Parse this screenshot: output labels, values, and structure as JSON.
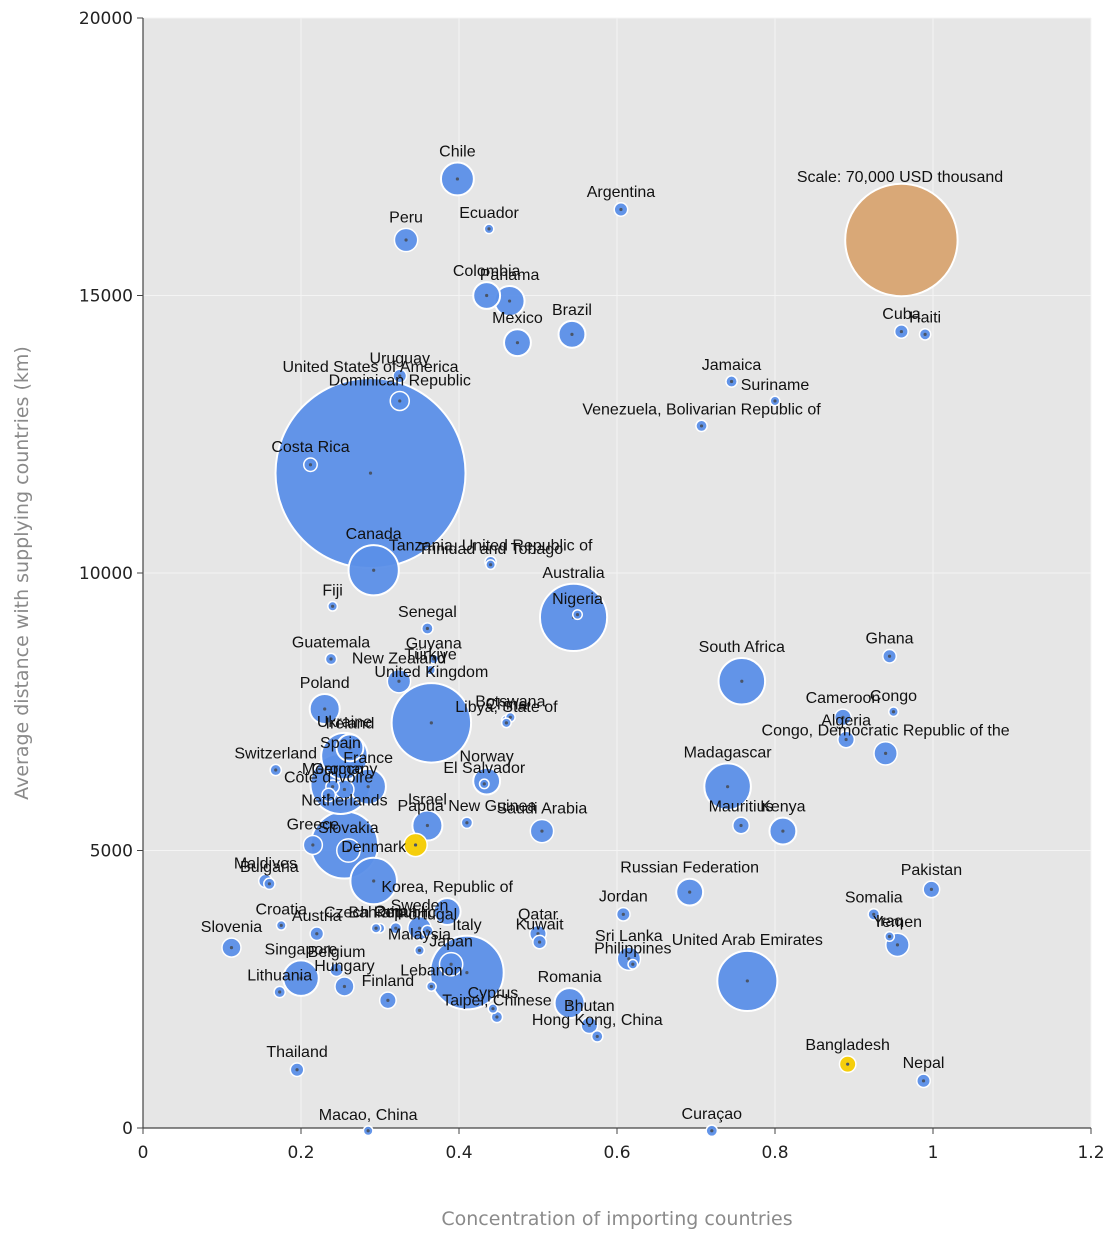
{
  "chart_data": {
    "type": "scatter",
    "title": "",
    "xlabel": "Concentration of importing countries",
    "ylabel": "Average distance with supplying countries (km)",
    "xlim": [
      0,
      1.2
    ],
    "ylim": [
      0,
      20000
    ],
    "x_ticks": [
      "0",
      "0.2",
      "0.4",
      "0.6",
      "0.8",
      "1",
      "1.2"
    ],
    "y_ticks": [
      "0",
      "5000",
      "10000",
      "15000",
      "20000"
    ],
    "grid": true,
    "colors": {
      "bubble": "#5b8fe8",
      "highlight": "#f5cc00",
      "scale": "#d9a877",
      "plot_bg": "#e6e6e6",
      "grid": "#f4f4f4"
    },
    "scale_bubble": {
      "label": "Scale: 70,000 USD thousand",
      "value": 70000
    },
    "points": [
      {
        "name": "Chile",
        "x": 0.398,
        "y": 17100,
        "size": 6000
      },
      {
        "name": "Argentina",
        "x": 0.605,
        "y": 16550,
        "size": 1000
      },
      {
        "name": "Ecuador",
        "x": 0.438,
        "y": 16200,
        "size": 500
      },
      {
        "name": "Peru",
        "x": 0.333,
        "y": 16000,
        "size": 3000
      },
      {
        "name": "Colombia",
        "x": 0.435,
        "y": 15000,
        "size": 4000
      },
      {
        "name": "Panama",
        "x": 0.464,
        "y": 14900,
        "size": 5000
      },
      {
        "name": "Brazil",
        "x": 0.543,
        "y": 14300,
        "size": 4000
      },
      {
        "name": "Mexico",
        "x": 0.474,
        "y": 14150,
        "size": 4000
      },
      {
        "name": "Cuba",
        "x": 0.96,
        "y": 14350,
        "size": 1000
      },
      {
        "name": "Haiti",
        "x": 0.99,
        "y": 14300,
        "size": 700
      },
      {
        "name": "Uruguay",
        "x": 0.325,
        "y": 13550,
        "size": 1000
      },
      {
        "name": "Dominican Republic",
        "x": 0.325,
        "y": 13100,
        "size": 2000
      },
      {
        "name": "United States of America",
        "x": 0.288,
        "y": 11800,
        "size": 200000
      },
      {
        "name": "Jamaica",
        "x": 0.745,
        "y": 13450,
        "size": 700
      },
      {
        "name": "Suriname",
        "x": 0.8,
        "y": 13100,
        "size": 500
      },
      {
        "name": "Venezuela, Bolivarian Republic of",
        "x": 0.707,
        "y": 12650,
        "size": 700
      },
      {
        "name": "Costa Rica",
        "x": 0.212,
        "y": 11950,
        "size": 1000
      },
      {
        "name": "Canada",
        "x": 0.292,
        "y": 10050,
        "size": 14000
      },
      {
        "name": "Tanzania, United Republic of",
        "x": 0.44,
        "y": 10200,
        "size": 700
      },
      {
        "name": "Trinidad and Tobago",
        "x": 0.44,
        "y": 10150,
        "size": 500
      },
      {
        "name": "Fiji",
        "x": 0.24,
        "y": 9400,
        "size": 500
      },
      {
        "name": "Australia",
        "x": 0.545,
        "y": 9200,
        "size": 25000
      },
      {
        "name": "Nigeria",
        "x": 0.55,
        "y": 9250,
        "size": 500
      },
      {
        "name": "Senegal",
        "x": 0.36,
        "y": 9000,
        "size": 700
      },
      {
        "name": "Guyana",
        "x": 0.368,
        "y": 8450,
        "size": 500
      },
      {
        "name": "Guatemala",
        "x": 0.238,
        "y": 8450,
        "size": 700
      },
      {
        "name": "Türkiye",
        "x": 0.364,
        "y": 8250,
        "size": 500
      },
      {
        "name": "New Zealand",
        "x": 0.324,
        "y": 8050,
        "size": 3000
      },
      {
        "name": "South Africa",
        "x": 0.758,
        "y": 8050,
        "size": 12000
      },
      {
        "name": "Ghana",
        "x": 0.945,
        "y": 8500,
        "size": 1000
      },
      {
        "name": "United Kingdom",
        "x": 0.365,
        "y": 7300,
        "size": 35000
      },
      {
        "name": "Poland",
        "x": 0.23,
        "y": 7550,
        "size": 5000
      },
      {
        "name": "Ireland",
        "x": 0.262,
        "y": 6850,
        "size": 4000
      },
      {
        "name": "China",
        "x": 0.46,
        "y": 7350,
        "size": 500
      },
      {
        "name": "Botswana",
        "x": 0.465,
        "y": 7400,
        "size": 500
      },
      {
        "name": "Libya, State of",
        "x": 0.46,
        "y": 7300,
        "size": 500
      },
      {
        "name": "Cameroon",
        "x": 0.886,
        "y": 7400,
        "size": 1500
      },
      {
        "name": "Congo",
        "x": 0.95,
        "y": 7500,
        "size": 500
      },
      {
        "name": "Ukraine",
        "x": 0.255,
        "y": 6700,
        "size": 12000
      },
      {
        "name": "Spain",
        "x": 0.25,
        "y": 6200,
        "size": 20000
      },
      {
        "name": "Morocco",
        "x": 0.24,
        "y": 6150,
        "size": 1000
      },
      {
        "name": "Côte d'Ivoire",
        "x": 0.235,
        "y": 6000,
        "size": 1000
      },
      {
        "name": "Norway",
        "x": 0.435,
        "y": 6250,
        "size": 4000
      },
      {
        "name": "Madagascar",
        "x": 0.74,
        "y": 6150,
        "size": 12000
      },
      {
        "name": "Algeria",
        "x": 0.89,
        "y": 7000,
        "size": 1500
      },
      {
        "name": "Congo, Democratic Republic of the",
        "x": 0.94,
        "y": 6750,
        "size": 3000
      },
      {
        "name": "Switzerland",
        "x": 0.168,
        "y": 6450,
        "size": 700
      },
      {
        "name": "Germany",
        "x": 0.255,
        "y": 6100,
        "size": 2000
      },
      {
        "name": "France",
        "x": 0.285,
        "y": 6150,
        "size": 7000
      },
      {
        "name": "El Salvador",
        "x": 0.432,
        "y": 6200,
        "size": 500
      },
      {
        "name": "Papua New Guinea",
        "x": 0.41,
        "y": 5500,
        "size": 700
      },
      {
        "name": "Kenya",
        "x": 0.81,
        "y": 5350,
        "size": 4000
      },
      {
        "name": "Mauritius",
        "x": 0.757,
        "y": 5450,
        "size": 1500
      },
      {
        "name": "Netherlands",
        "x": 0.255,
        "y": 5100,
        "size": 25000
      },
      {
        "name": "Greece",
        "x": 0.215,
        "y": 5100,
        "size": 2000
      },
      {
        "name": "Israel",
        "x": 0.36,
        "y": 5450,
        "size": 5000
      },
      {
        "name": "Saudi Arabia",
        "x": 0.505,
        "y": 5350,
        "size": 3000
      },
      {
        "name": "Slovakia",
        "x": 0.26,
        "y": 5000,
        "size": 3000
      },
      {
        "name": "Denmark",
        "x": 0.292,
        "y": 4450,
        "size": 12000
      },
      {
        "name": "Qatar",
        "x": 0.5,
        "y": 3500,
        "size": 1500
      },
      {
        "name": "Maldives",
        "x": 0.155,
        "y": 4450,
        "size": 1000
      },
      {
        "name": "Bulgaria",
        "x": 0.16,
        "y": 4400,
        "size": 700
      },
      {
        "name": "Russian Federation",
        "x": 0.692,
        "y": 4250,
        "size": 4000
      },
      {
        "name": "Pakistan",
        "x": 0.998,
        "y": 4300,
        "size": 1500
      },
      {
        "name": "Korea, Republic of",
        "x": 0.385,
        "y": 3900,
        "size": 4000
      },
      {
        "name": "Jordan",
        "x": 0.608,
        "y": 3850,
        "size": 1000
      },
      {
        "name": "Somalia",
        "x": 0.925,
        "y": 3850,
        "size": 700
      },
      {
        "name": "Iraq",
        "x": 0.945,
        "y": 3450,
        "size": 500
      },
      {
        "name": "Yemen",
        "x": 0.955,
        "y": 3300,
        "size": 3000
      },
      {
        "name": "Austria",
        "x": 0.22,
        "y": 3500,
        "size": 1000
      },
      {
        "name": "Sweden",
        "x": 0.35,
        "y": 3600,
        "size": 3000
      },
      {
        "name": "Italy",
        "x": 0.41,
        "y": 2800,
        "size": 30000
      },
      {
        "name": "Kuwait",
        "x": 0.502,
        "y": 3350,
        "size": 1000
      },
      {
        "name": "United Arab Emirates",
        "x": 0.765,
        "y": 2650,
        "size": 20000
      },
      {
        "name": "Slovenia",
        "x": 0.112,
        "y": 3250,
        "size": 2000
      },
      {
        "name": "Japan",
        "x": 0.39,
        "y": 2950,
        "size": 3000
      },
      {
        "name": "Sri Lanka",
        "x": 0.615,
        "y": 3050,
        "size": 3000
      },
      {
        "name": "Philippines",
        "x": 0.62,
        "y": 2950,
        "size": 500
      },
      {
        "name": "Singapore",
        "x": 0.2,
        "y": 2700,
        "size": 7000
      },
      {
        "name": "Belgium",
        "x": 0.245,
        "y": 2850,
        "size": 1000
      },
      {
        "name": "Hungary",
        "x": 0.255,
        "y": 2550,
        "size": 2000
      },
      {
        "name": "Finland",
        "x": 0.31,
        "y": 2300,
        "size": 1500
      },
      {
        "name": "Malaysia",
        "x": 0.35,
        "y": 3200,
        "size": 500
      },
      {
        "name": "Cyprus",
        "x": 0.443,
        "y": 2150,
        "size": 500
      },
      {
        "name": "Portugal",
        "x": 0.36,
        "y": 3550,
        "size": 700
      },
      {
        "name": "Lithuania",
        "x": 0.173,
        "y": 2450,
        "size": 700
      },
      {
        "name": "Oman",
        "x": 0.32,
        "y": 3600,
        "size": 700
      },
      {
        "name": "Romania",
        "x": 0.54,
        "y": 2250,
        "size": 5000
      },
      {
        "name": "Bhutan",
        "x": 0.565,
        "y": 1850,
        "size": 1500
      },
      {
        "name": "Hong Kong, China",
        "x": 0.575,
        "y": 1650,
        "size": 700
      },
      {
        "name": "Thailand",
        "x": 0.195,
        "y": 1050,
        "size": 1000
      },
      {
        "name": "Czech Republic",
        "x": 0.3,
        "y": 3600,
        "size": 500
      },
      {
        "name": "Croatia",
        "x": 0.175,
        "y": 3650,
        "size": 500
      },
      {
        "name": "Bahrain",
        "x": 0.295,
        "y": 3600,
        "size": 500
      },
      {
        "name": "Taipei, Chinese",
        "x": 0.448,
        "y": 2000,
        "size": 700
      },
      {
        "name": "Bangladesh",
        "x": 0.892,
        "y": 1150,
        "size": 1500,
        "highlight": true
      },
      {
        "name": "Nepal",
        "x": 0.988,
        "y": 850,
        "size": 1000
      },
      {
        "name": "Lebanon",
        "x": 0.365,
        "y": 2550,
        "size": 500
      },
      {
        "name": "Macao, China",
        "x": 0.285,
        "y": -50,
        "size": 500
      },
      {
        "name": "Curaçao",
        "x": 0.72,
        "y": -50,
        "size": 700
      },
      {
        "name": "",
        "x": 0.345,
        "y": 5100,
        "size": 3000,
        "highlight": true
      }
    ]
  }
}
